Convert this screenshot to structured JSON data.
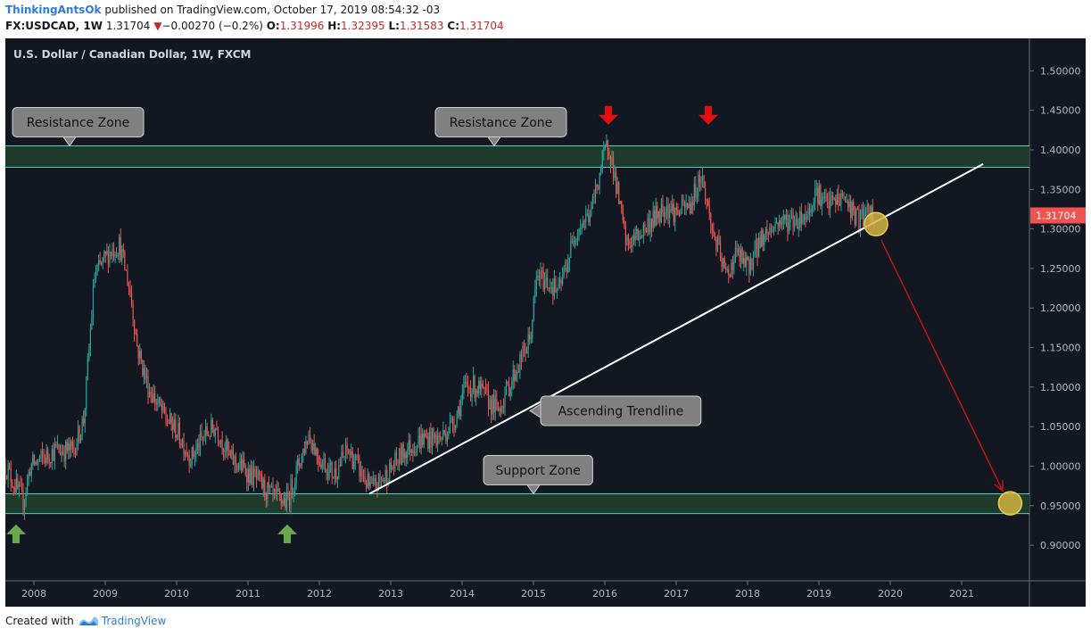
{
  "header": {
    "author": "ThinkingAntsOk",
    "published": "published on TradingView.com, October 17, 2019 08:54:32 -03",
    "symbol": "FX:USDCAD, 1W",
    "last": "1.31704",
    "arrow": "▼",
    "change": "−0.00270 (−0.2%)",
    "o_label": "O:",
    "o_value": "1.31996",
    "h_label": "H:",
    "h_value": "1.32395",
    "l_label": "L:",
    "l_value": "1.31583",
    "c_label": "C:",
    "c_value": "1.31704"
  },
  "footer": {
    "created_with": "Created with",
    "brand": "TradingView"
  },
  "colors": {
    "background": "#131722",
    "up": "#26a69a",
    "down": "#ef5350",
    "zone_fill": "#1f3b2c",
    "zone_line": "#4dd0c8",
    "trendline": "#ffffff",
    "projection": "#cc1111",
    "circle": "#d4b440",
    "callout": "#808080",
    "price_label": "#ef5350",
    "red_arrow": "#e01010",
    "green_arrow": "#6aa84f"
  },
  "chart_data": {
    "type": "candlestick",
    "title": "U.S. Dollar / Canadian Dollar, 1W, FXCM",
    "timeframe": "weekly",
    "x_range": [
      2007.6,
      2021.95
    ],
    "y_range": [
      0.855,
      1.541
    ],
    "y_ticks": [
      "1.50000",
      "1.45000",
      "1.40000",
      "1.35000",
      "1.30000",
      "1.25000",
      "1.20000",
      "1.15000",
      "1.10000",
      "1.05000",
      "1.00000",
      "0.95000",
      "0.90000"
    ],
    "x_ticks": [
      "2008",
      "2009",
      "2010",
      "2011",
      "2012",
      "2013",
      "2014",
      "2015",
      "2016",
      "2017",
      "2018",
      "2019",
      "2020",
      "2021"
    ],
    "current_price_label": "1.31704",
    "price_path": [
      [
        2007.6,
        1.0
      ],
      [
        2007.85,
        0.955
      ],
      [
        2007.95,
        1.0
      ],
      [
        2008.3,
        1.02
      ],
      [
        2008.55,
        1.02
      ],
      [
        2008.7,
        1.06
      ],
      [
        2008.85,
        1.24
      ],
      [
        2009.05,
        1.27
      ],
      [
        2009.2,
        1.28
      ],
      [
        2009.35,
        1.22
      ],
      [
        2009.45,
        1.15
      ],
      [
        2009.6,
        1.1
      ],
      [
        2009.85,
        1.06
      ],
      [
        2010.0,
        1.045
      ],
      [
        2010.2,
        1.01
      ],
      [
        2010.4,
        1.04
      ],
      [
        2010.55,
        1.05
      ],
      [
        2010.75,
        1.01
      ],
      [
        2010.9,
        1.0
      ],
      [
        2011.15,
        0.98
      ],
      [
        2011.35,
        0.96
      ],
      [
        2011.55,
        0.955
      ],
      [
        2011.7,
        1.0
      ],
      [
        2011.85,
        1.04
      ],
      [
        2012.0,
        1.01
      ],
      [
        2012.2,
        0.99
      ],
      [
        2012.4,
        1.02
      ],
      [
        2012.6,
        0.99
      ],
      [
        2012.72,
        0.97
      ],
      [
        2012.95,
        0.99
      ],
      [
        2013.2,
        1.02
      ],
      [
        2013.45,
        1.035
      ],
      [
        2013.7,
        1.035
      ],
      [
        2013.9,
        1.06
      ],
      [
        2014.05,
        1.1
      ],
      [
        2014.2,
        1.1
      ],
      [
        2014.5,
        1.07
      ],
      [
        2014.75,
        1.12
      ],
      [
        2014.95,
        1.16
      ],
      [
        2015.05,
        1.24
      ],
      [
        2015.25,
        1.23
      ],
      [
        2015.35,
        1.22
      ],
      [
        2015.45,
        1.25
      ],
      [
        2015.6,
        1.3
      ],
      [
        2015.8,
        1.32
      ],
      [
        2015.95,
        1.38
      ],
      [
        2016.05,
        1.41
      ],
      [
        2016.15,
        1.36
      ],
      [
        2016.3,
        1.28
      ],
      [
        2016.45,
        1.29
      ],
      [
        2016.65,
        1.31
      ],
      [
        2016.85,
        1.33
      ],
      [
        2017.0,
        1.32
      ],
      [
        2017.2,
        1.33
      ],
      [
        2017.35,
        1.37
      ],
      [
        2017.5,
        1.3
      ],
      [
        2017.7,
        1.24
      ],
      [
        2017.85,
        1.27
      ],
      [
        2018.0,
        1.25
      ],
      [
        2018.2,
        1.29
      ],
      [
        2018.45,
        1.31
      ],
      [
        2018.65,
        1.31
      ],
      [
        2018.85,
        1.32
      ],
      [
        2018.95,
        1.35
      ],
      [
        2019.1,
        1.33
      ],
      [
        2019.35,
        1.34
      ],
      [
        2019.55,
        1.31
      ],
      [
        2019.7,
        1.32
      ],
      [
        2019.79,
        1.317
      ]
    ],
    "resistance_zone": {
      "label": "Resistance Zone",
      "low": 1.378,
      "high": 1.405
    },
    "support_zone": {
      "label": "Support Zone",
      "low": 0.94,
      "high": 0.965
    },
    "trendline": {
      "label": "Ascending Trendline",
      "points": [
        [
          2012.7,
          0.965
        ],
        [
          2021.3,
          1.382
        ]
      ]
    },
    "projection": {
      "from": [
        2019.8,
        1.306
      ],
      "to": [
        2021.65,
        0.953
      ]
    },
    "target_circles": [
      [
        2019.8,
        1.306
      ],
      [
        2021.68,
        0.953
      ]
    ],
    "callouts": [
      {
        "text": "Resistance Zone",
        "x": 2008.5,
        "y": 1.405
      },
      {
        "text": "Resistance Zone",
        "x": 2014.45,
        "y": 1.405
      },
      {
        "text": "Ascending Trendline",
        "x": 2014.95,
        "y": 1.07
      },
      {
        "text": "Support Zone",
        "x": 2015.0,
        "y": 0.965
      }
    ],
    "red_arrows": [
      [
        2016.05,
        1.442
      ],
      [
        2017.45,
        1.442
      ]
    ],
    "green_arrows": [
      [
        2007.75,
        0.916
      ],
      [
        2011.55,
        0.916
      ]
    ]
  }
}
